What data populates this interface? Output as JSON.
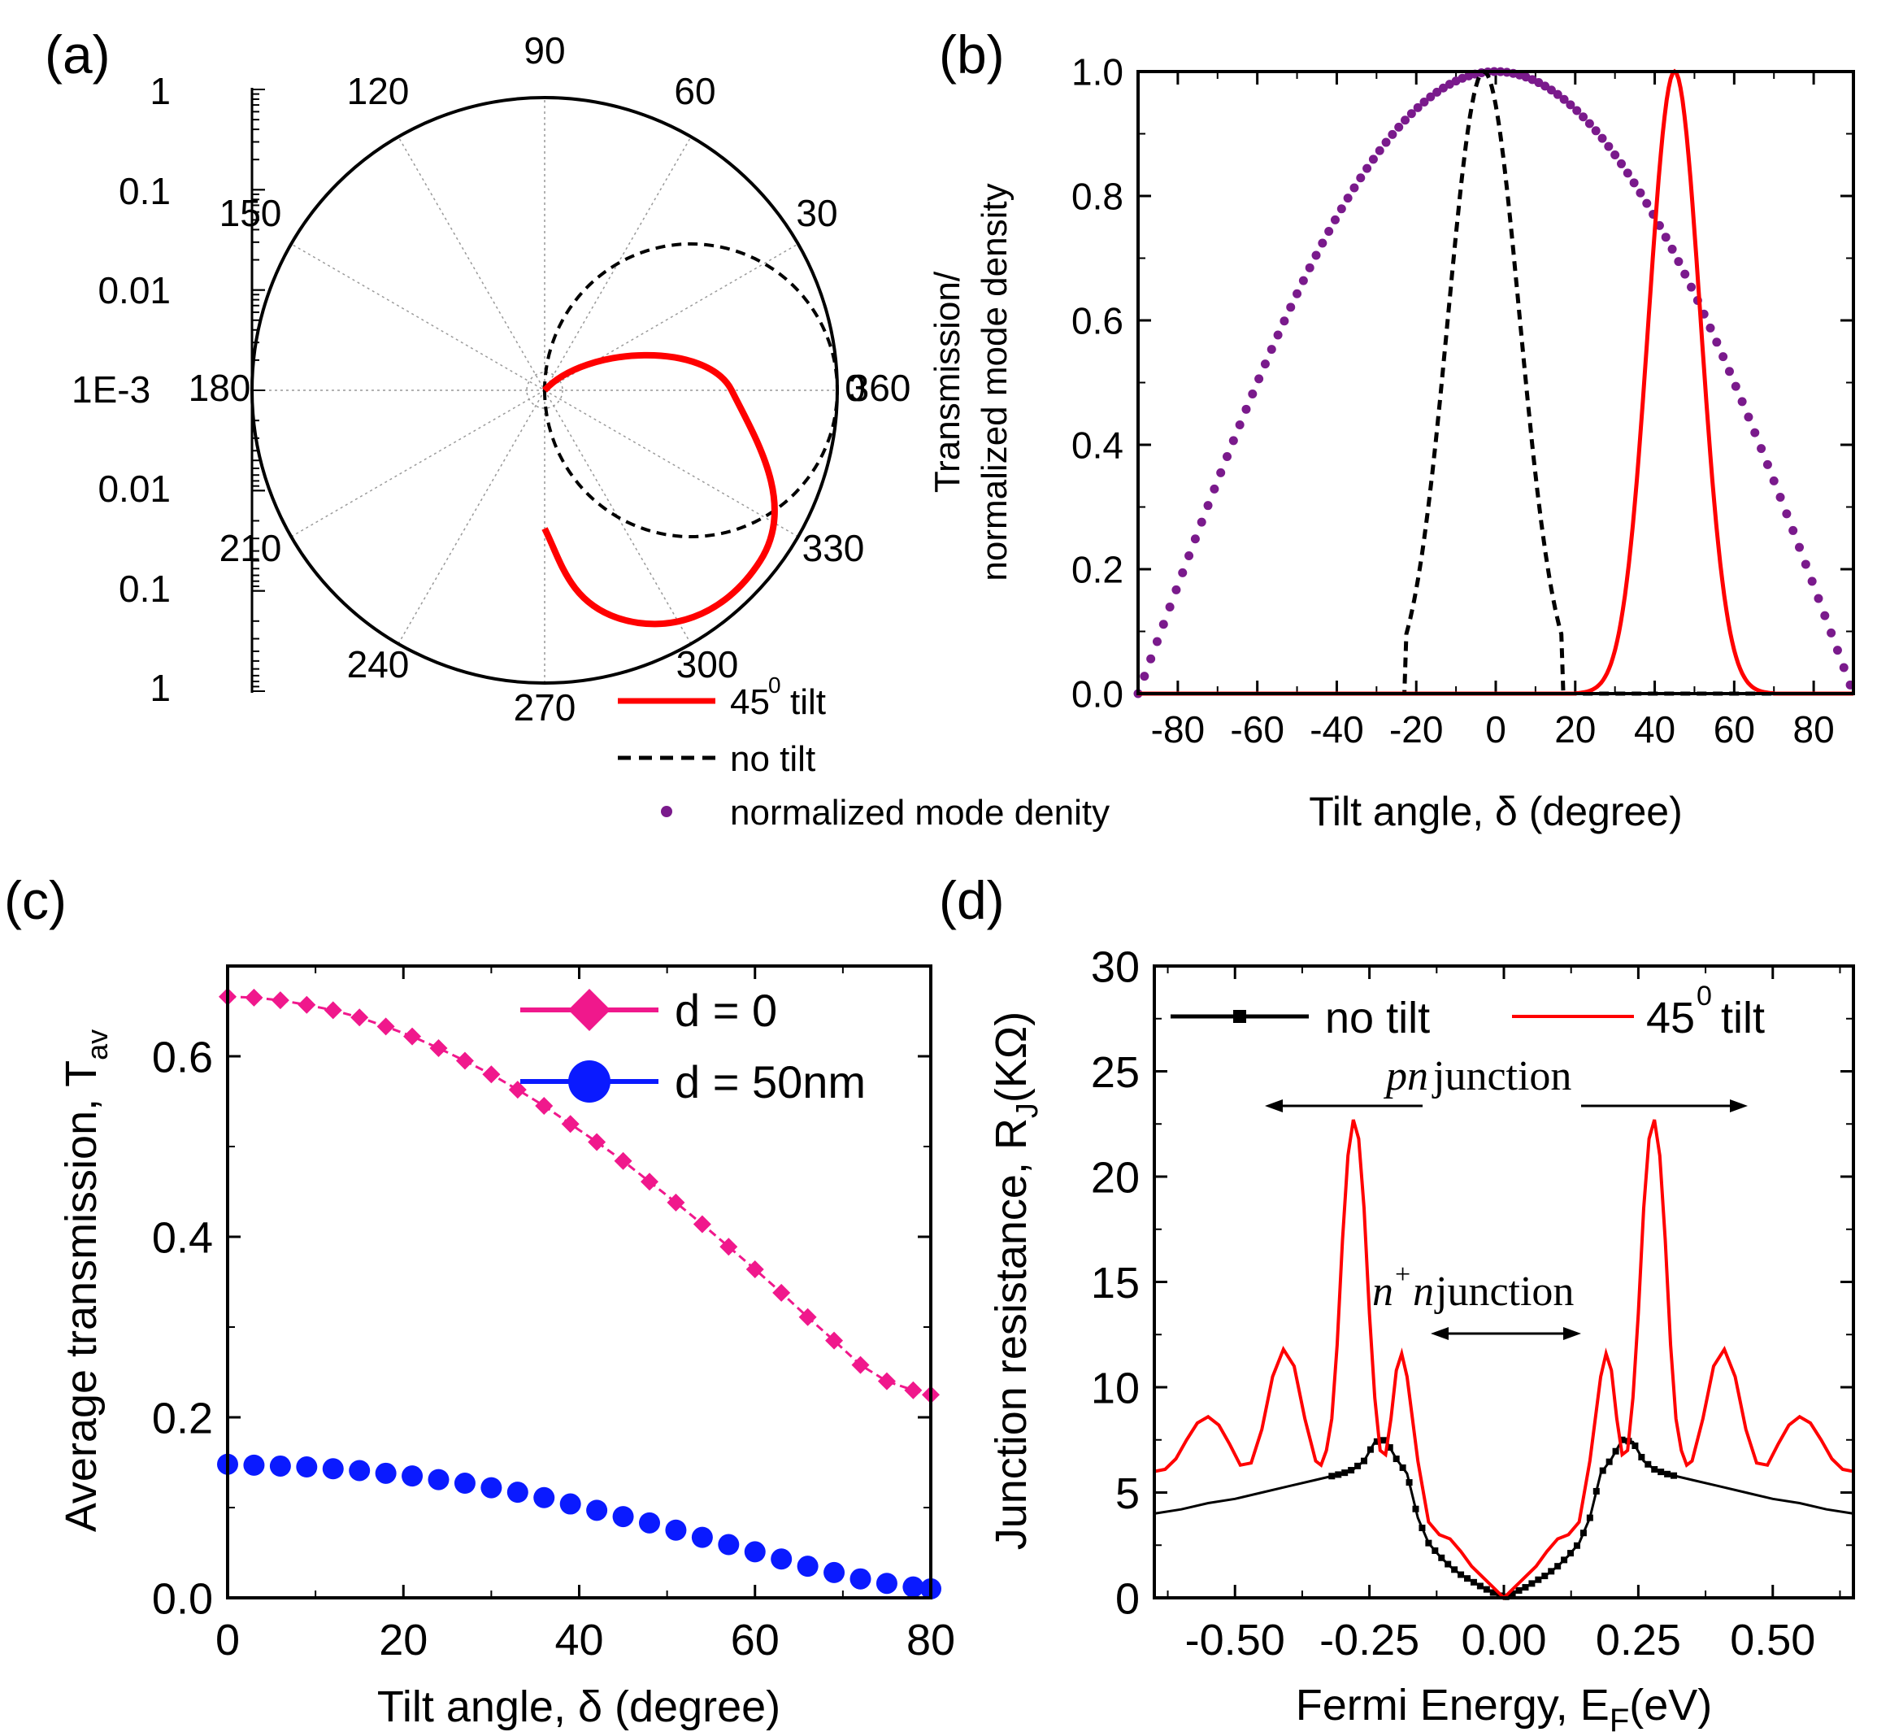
{
  "chart_data": [
    {
      "panel": "(a)",
      "type": "polar",
      "angle_ticks": [
        "0",
        "30",
        "60",
        "90",
        "120",
        "150",
        "180",
        "210",
        "240",
        "270",
        "300",
        "330",
        "360"
      ],
      "radial_axis": {
        "scale": "log",
        "labels_upper": [
          "1",
          "0.1",
          "0.01",
          "1E-3"
        ],
        "labels_lower": [
          "0.01",
          "0.1",
          "1"
        ]
      },
      "legend": {
        "placement": "bottom-right",
        "entries": [
          "45",
          "tilt",
          "no tilt",
          "normalized mode denity"
        ]
      },
      "series": [
        {
          "name": "45° tilt",
          "color": "#ff0000",
          "style": "solid",
          "description": "transmission for 45 degree tilt, peaked near 315 deg"
        },
        {
          "name": "no tilt",
          "color": "#000000",
          "style": "dashed",
          "description": "transmission without tilt, peaked at 0 deg"
        }
      ],
      "superscript": "0"
    },
    {
      "panel": "(b)",
      "type": "line",
      "xlabel": "Tilt angle, δ (degree)",
      "ylabel_line1": "Transmission/",
      "ylabel_line2": "normalized mode density",
      "xlim": [
        -90,
        90
      ],
      "ylim": [
        0,
        1.0
      ],
      "xticks": [
        "-80",
        "-60",
        "-40",
        "-20",
        "0",
        "20",
        "40",
        "60",
        "80"
      ],
      "yticks": [
        "0.0",
        "0.2",
        "0.4",
        "0.6",
        "0.8",
        "1.0"
      ],
      "series": [
        {
          "name": "normalized mode density",
          "color": "#7a1a8c",
          "style": "dots",
          "function": "cos",
          "range": [
            -90,
            90
          ]
        },
        {
          "name": "no tilt",
          "color": "#000000",
          "style": "dashed",
          "center": -3,
          "width": 9,
          "cutoff": 20
        },
        {
          "name": "45° tilt",
          "color": "#ff0000",
          "style": "solid",
          "center": 45,
          "width": 6.5,
          "cutoff": 25
        }
      ]
    },
    {
      "panel": "(c)",
      "type": "line",
      "xlabel": "Tilt angle, δ (degree)",
      "ylabel": "Average transmission, T",
      "ylabel_sub": "av",
      "xlim": [
        0,
        80
      ],
      "ylim": [
        0,
        0.7
      ],
      "xticks": [
        "0",
        "20",
        "40",
        "60",
        "80"
      ],
      "yticks": [
        "0.0",
        "0.2",
        "0.4",
        "0.6"
      ],
      "legend": {
        "placement": "top-right",
        "entries": [
          "d = 0",
          "d = 50nm"
        ]
      },
      "series": [
        {
          "name": "d = 0",
          "color": "#f0188c",
          "marker": "diamond",
          "x": [
            0,
            3,
            6,
            9,
            12,
            15,
            18,
            21,
            24,
            27,
            30,
            33,
            36,
            39,
            42,
            45,
            48,
            51,
            54,
            57,
            60,
            63,
            66,
            69,
            72,
            75,
            78,
            80
          ],
          "y": [
            0.666,
            0.665,
            0.662,
            0.657,
            0.651,
            0.643,
            0.633,
            0.622,
            0.609,
            0.595,
            0.58,
            0.563,
            0.545,
            0.525,
            0.505,
            0.484,
            0.461,
            0.438,
            0.414,
            0.389,
            0.364,
            0.338,
            0.311,
            0.285,
            0.258,
            0.24,
            0.23,
            0.225
          ]
        },
        {
          "name": "d = 50nm",
          "color": "#0a1aff",
          "marker": "circle",
          "x": [
            0,
            3,
            6,
            9,
            12,
            15,
            18,
            21,
            24,
            27,
            30,
            33,
            36,
            39,
            42,
            45,
            48,
            51,
            54,
            57,
            60,
            63,
            66,
            69,
            72,
            75,
            78,
            80
          ],
          "y": [
            0.148,
            0.147,
            0.146,
            0.145,
            0.143,
            0.141,
            0.138,
            0.135,
            0.131,
            0.127,
            0.122,
            0.117,
            0.111,
            0.104,
            0.097,
            0.09,
            0.083,
            0.075,
            0.067,
            0.059,
            0.051,
            0.043,
            0.035,
            0.028,
            0.021,
            0.016,
            0.012,
            0.01
          ]
        }
      ]
    },
    {
      "panel": "(d)",
      "type": "line",
      "xlabel": "Fermi Energy, E",
      "xlabel_sub": "F",
      "xlabel_unit": "(eV)",
      "ylabel": "Junction resistance, R",
      "ylabel_sub": "J",
      "ylabel_unit": "(KΩ)",
      "xlim": [
        -0.65,
        0.65
      ],
      "ylim": [
        0,
        30
      ],
      "xticks": [
        "-0.50",
        "-0.25",
        "0.00",
        "0.25",
        "0.50"
      ],
      "yticks": [
        "0",
        "5",
        "10",
        "15",
        "20",
        "25",
        "30"
      ],
      "legend": {
        "placement": "top",
        "entries": [
          "no tilt",
          "45",
          "tilt"
        ]
      },
      "superscript": "0",
      "annotations": {
        "pn_italic": "pn",
        "pn_rest": " junction",
        "nn_n1": "n",
        "nn_sup": "+",
        "nn_n2": "n",
        "nn_rest": " junction"
      },
      "series": [
        {
          "name": "no tilt",
          "color": "#000000",
          "marker": "square",
          "x": [
            0.0,
            0.02,
            0.04,
            0.06,
            0.08,
            0.1,
            0.12,
            0.14,
            0.16,
            0.18,
            0.2,
            0.22,
            0.24,
            0.26,
            0.28,
            0.3,
            0.35,
            0.4,
            0.45,
            0.5,
            0.55,
            0.6,
            0.65
          ],
          "y": [
            0.0,
            0.25,
            0.5,
            0.8,
            1.1,
            1.5,
            2.0,
            2.6,
            3.8,
            5.9,
            6.6,
            7.5,
            7.4,
            6.5,
            6.1,
            5.9,
            5.6,
            5.3,
            5.0,
            4.7,
            4.5,
            4.2,
            4.0
          ]
        },
        {
          "name": "45° tilt",
          "color": "#ff0000",
          "marker": "none",
          "x": [
            0.0,
            0.02,
            0.04,
            0.06,
            0.08,
            0.1,
            0.12,
            0.14,
            0.16,
            0.18,
            0.19,
            0.2,
            0.21,
            0.22,
            0.23,
            0.24,
            0.25,
            0.26,
            0.27,
            0.28,
            0.29,
            0.3,
            0.31,
            0.32,
            0.33,
            0.34,
            0.35,
            0.37,
            0.39,
            0.41,
            0.43,
            0.45,
            0.47,
            0.49,
            0.51,
            0.53,
            0.55,
            0.57,
            0.59,
            0.61,
            0.63,
            0.65
          ],
          "y": [
            0.0,
            0.5,
            1.0,
            1.5,
            2.2,
            2.8,
            3.0,
            3.6,
            6.5,
            10.5,
            11.6,
            10.8,
            8.5,
            6.8,
            7.0,
            9.5,
            13.5,
            18.5,
            21.8,
            22.7,
            21.0,
            17.0,
            12.0,
            8.5,
            7.0,
            6.3,
            6.5,
            8.5,
            11.0,
            11.8,
            10.5,
            8.0,
            6.4,
            6.3,
            7.3,
            8.2,
            8.6,
            8.3,
            7.5,
            6.6,
            6.1,
            6.0
          ]
        }
      ]
    }
  ],
  "panel_labels": [
    "(a)",
    "(b)",
    "(c)",
    "(d)"
  ]
}
